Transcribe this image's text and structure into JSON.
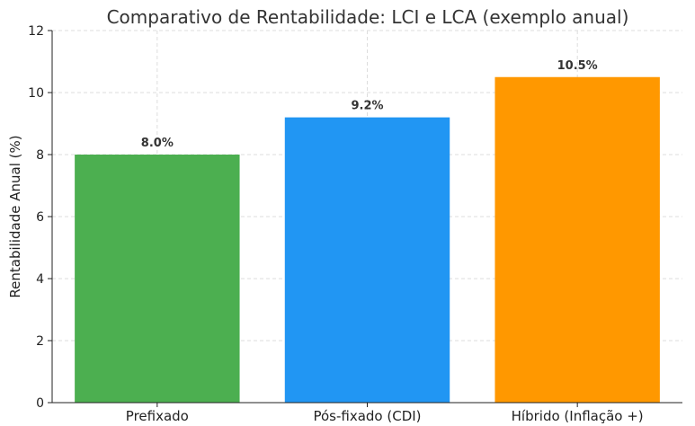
{
  "chart_data": {
    "type": "bar",
    "title": "Comparativo de Rentabilidade: LCI e LCA (exemplo anual)",
    "xlabel": "",
    "ylabel": "Rentabilidade Anual (%)",
    "ylim": [
      0,
      12
    ],
    "yticks": [
      "0",
      "2",
      "4",
      "6",
      "8",
      "10",
      "12"
    ],
    "categories": [
      "Prefixado",
      "Pós-fixado (CDI)",
      "Híbrido (Inflação +)"
    ],
    "values": [
      8.0,
      9.2,
      10.5
    ],
    "data_labels": [
      "8.0%",
      "9.2%",
      "10.5%"
    ],
    "colors": [
      "#4caf50",
      "#2196f3",
      "#ff9800"
    ],
    "grid": true,
    "legend": "none"
  }
}
